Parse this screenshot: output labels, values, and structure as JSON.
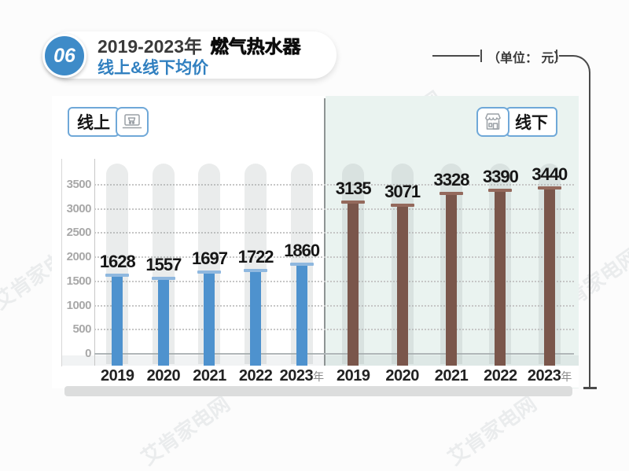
{
  "header": {
    "badge": "06",
    "title_prefix": "2019-2023年",
    "title_highlight": "燃气热水器",
    "subtitle": "线上&线下均价",
    "unit_label": "（单位： 元）"
  },
  "panels": {
    "online": {
      "label": "线上"
    },
    "offline": {
      "label": "线下"
    }
  },
  "x_axis_suffix": "年",
  "watermark": {
    "text": "艾肯家电网"
  },
  "colors": {
    "accent_blue": "#3180C0",
    "badge_blue": "#3E8BC8",
    "bar_online": "#4E92CE",
    "bar_online_cap": "#8FB8DF",
    "bar_offline": "#7A564B",
    "bar_offline_cap": "#94695C",
    "panel_offline_bg": "#EAF3F0"
  },
  "chart_data": {
    "type": "bar",
    "title": "2019-2023年 燃气热水器 线上&线下均价",
    "unit": "元",
    "categories": [
      "2019",
      "2020",
      "2021",
      "2022",
      "2023"
    ],
    "series": [
      {
        "name": "线上",
        "color": "#4E92CE",
        "cap_color": "#8FB8DF",
        "values": [
          1628,
          1557,
          1697,
          1722,
          1860
        ]
      },
      {
        "name": "线下",
        "color": "#7A564B",
        "cap_color": "#94695C",
        "values": [
          3135,
          3071,
          3328,
          3390,
          3440
        ]
      }
    ],
    "ylim": [
      0,
      3500
    ],
    "yticks": [
      0,
      500,
      1000,
      1500,
      2000,
      2500,
      3000,
      3500
    ],
    "grid": "dotted-horizontal",
    "legend_position": "top"
  }
}
